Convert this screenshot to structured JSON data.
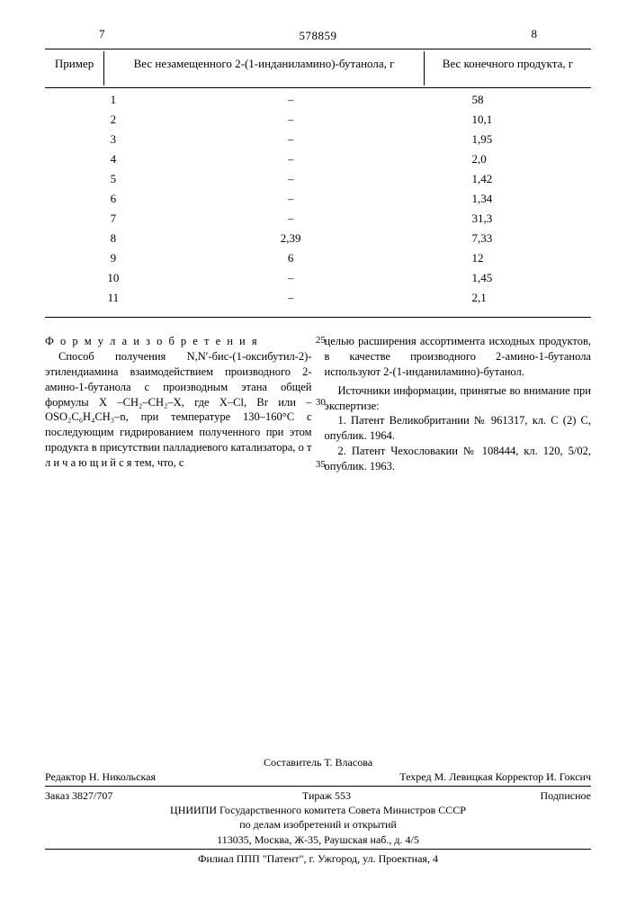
{
  "doc_number": "578859",
  "page_left": "7",
  "page_right": "8",
  "table": {
    "type": "table",
    "columns": [
      "Пример",
      "Вес незамещенного 2-(1-инданиламино)-бутанола, г",
      "Вес конечного продукта, г"
    ],
    "rows": [
      [
        "1",
        "–",
        "58"
      ],
      [
        "2",
        "–",
        "10,1"
      ],
      [
        "3",
        "–",
        "1,95"
      ],
      [
        "4",
        "–",
        "2,0"
      ],
      [
        "5",
        "–",
        "1,42"
      ],
      [
        "6",
        "–",
        "1,34"
      ],
      [
        "7",
        "–",
        "31,3"
      ],
      [
        "8",
        "2,39",
        "7,33"
      ],
      [
        "9",
        "6",
        "12"
      ],
      [
        "10",
        "–",
        "1,45"
      ],
      [
        "11",
        "–",
        "2,1"
      ]
    ],
    "font_size": 13,
    "rule_color": "#000000"
  },
  "body": {
    "heading": "Ф о р м у л а  и з о б р е т е н и я",
    "left_para": "Способ получения N,N′-бис-(1-оксибутил-2)-этилендиамина взаимодействием производного 2-амино-1-бутанола с производным этана общей формулы X –CH₂–CH₂–X, где X–Cl, Br или –OSO₂C₆H₄CH₃–n, при температуре 130–160°C с последующим гидрированием полученного при этом продукта в присутствии палладиевого катализатора, о т л и ч а ю щ и й с я тем, что, с",
    "right_para": "целью расширения ассортимента исходных продуктов, в качестве производного 2-амино-1-бутанола используют 2-(1-инданиламино)-бутанол.",
    "right_sources_head": "Источники информации, принятые во внимание при экспертизе:",
    "right_src1": "1. Патент Великобритании № 961317, кл. C (2) C, опублик. 1964.",
    "right_src2": "2. Патент Чехословакии № 108444, кл. 120, 5/02, опублик. 1963.",
    "line_markers": [
      "25",
      "30",
      "35"
    ]
  },
  "footer": {
    "compiler": "Составитель Т. Власова",
    "editor": "Редактор Н. Никольская",
    "tech_corr": "Техред М. Левицкая Корректор И. Гоксич",
    "order": "Заказ 3827/707",
    "tirazh": "Тираж 553",
    "subscription": "Подписное",
    "org1": "ЦНИИПИ Государственного комитета Совета Министров СССР",
    "org2": "по делам изобретений и открытий",
    "addr": "113035, Москва, Ж-35, Раушская наб., д. 4/5",
    "branch": "Филиал ППП \"Патент\", г. Ужгород, ул. Проектная, 4"
  }
}
